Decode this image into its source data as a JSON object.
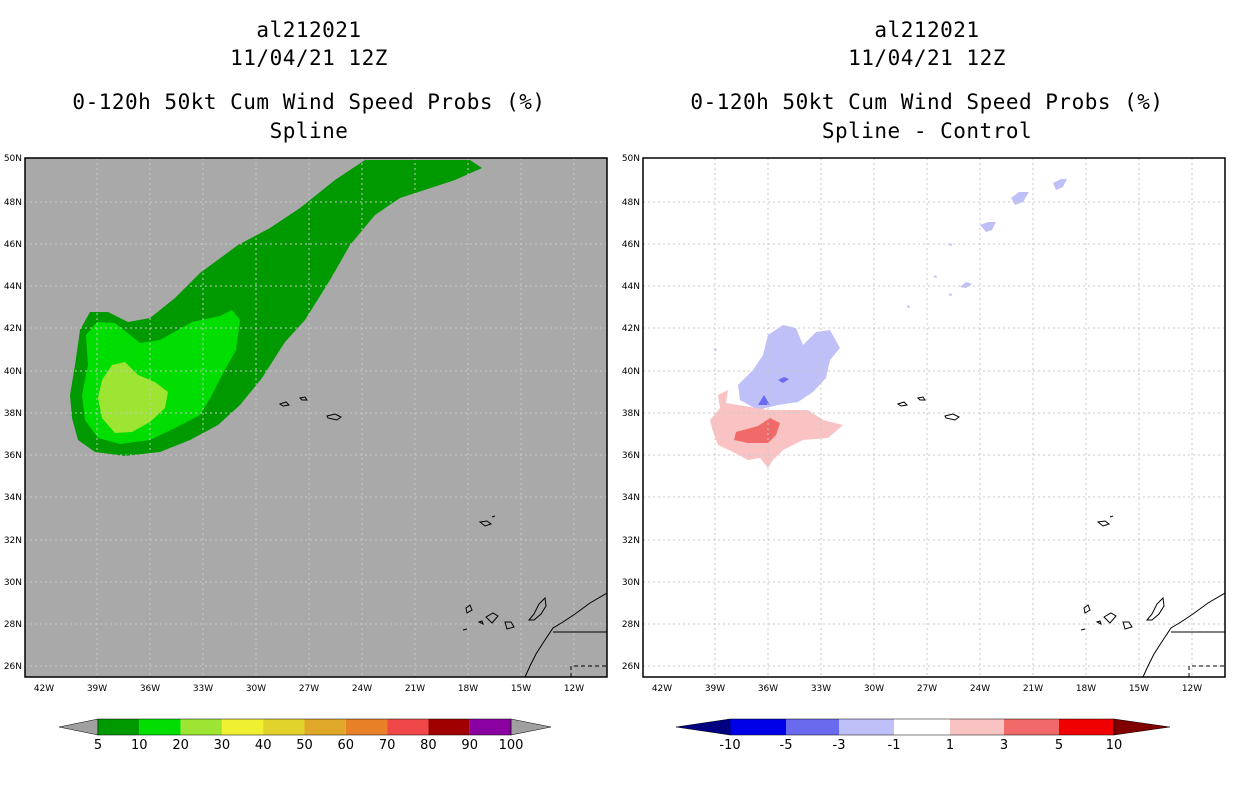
{
  "colors": {
    "ocean_gray": "#a9a9a9",
    "green_dark": "#009900",
    "green_mid": "#00dd00",
    "green_light": "#9de532",
    "blue_light": "#c0c0f8",
    "blue_mid": "#6a6aee",
    "red_light": "#f9c3c3",
    "red_mid": "#f06a6a"
  },
  "left_panel": {
    "title_storm": "al212021",
    "title_date": "11/04/21 12Z",
    "title_product": "0-120h 50kt Cum Wind Speed Probs (%)",
    "title_method": "Spline",
    "map": {
      "lat_labels": [
        "50N",
        "48N",
        "46N",
        "44N",
        "42N",
        "40N",
        "38N",
        "36N",
        "34N",
        "32N",
        "30N",
        "28N",
        "26N"
      ],
      "lon_labels": [
        "42W",
        "39W",
        "36W",
        "33W",
        "30W",
        "27W",
        "24W",
        "21W",
        "18W",
        "15W",
        "12W"
      ]
    },
    "colorbar": {
      "colors": [
        "#009900",
        "#00dd00",
        "#9de532",
        "#f0f032",
        "#e0d22a",
        "#e0a828",
        "#e88028",
        "#f04848",
        "#a00000",
        "#8a00a0"
      ],
      "tip_color": "#a0a0a0",
      "labels": [
        "5",
        "10",
        "20",
        "30",
        "40",
        "50",
        "60",
        "70",
        "80",
        "90",
        "100"
      ]
    }
  },
  "right_panel": {
    "title_storm": "al212021",
    "title_date": "11/04/21 12Z",
    "title_product": "0-120h 50kt Cum Wind Speed Probs (%)",
    "title_method": "Spline - Control",
    "map": {
      "lat_labels": [
        "50N",
        "48N",
        "46N",
        "44N",
        "42N",
        "40N",
        "38N",
        "36N",
        "34N",
        "32N",
        "30N",
        "28N",
        "26N"
      ],
      "lon_labels": [
        "42W",
        "39W",
        "36W",
        "33W",
        "30W",
        "27W",
        "24W",
        "21W",
        "18W",
        "15W",
        "12W"
      ]
    },
    "colorbar": {
      "colors": [
        "#0000e8",
        "#6a6aee",
        "#c0c0f8",
        "#ffffff",
        "#f9c3c3",
        "#f06a6a",
        "#f00000"
      ],
      "tip_left_color": "#000080",
      "tip_right_color": "#800000",
      "labels": [
        "-10",
        "-5",
        "-3",
        "-1",
        "1",
        "3",
        "5",
        "10"
      ]
    }
  }
}
